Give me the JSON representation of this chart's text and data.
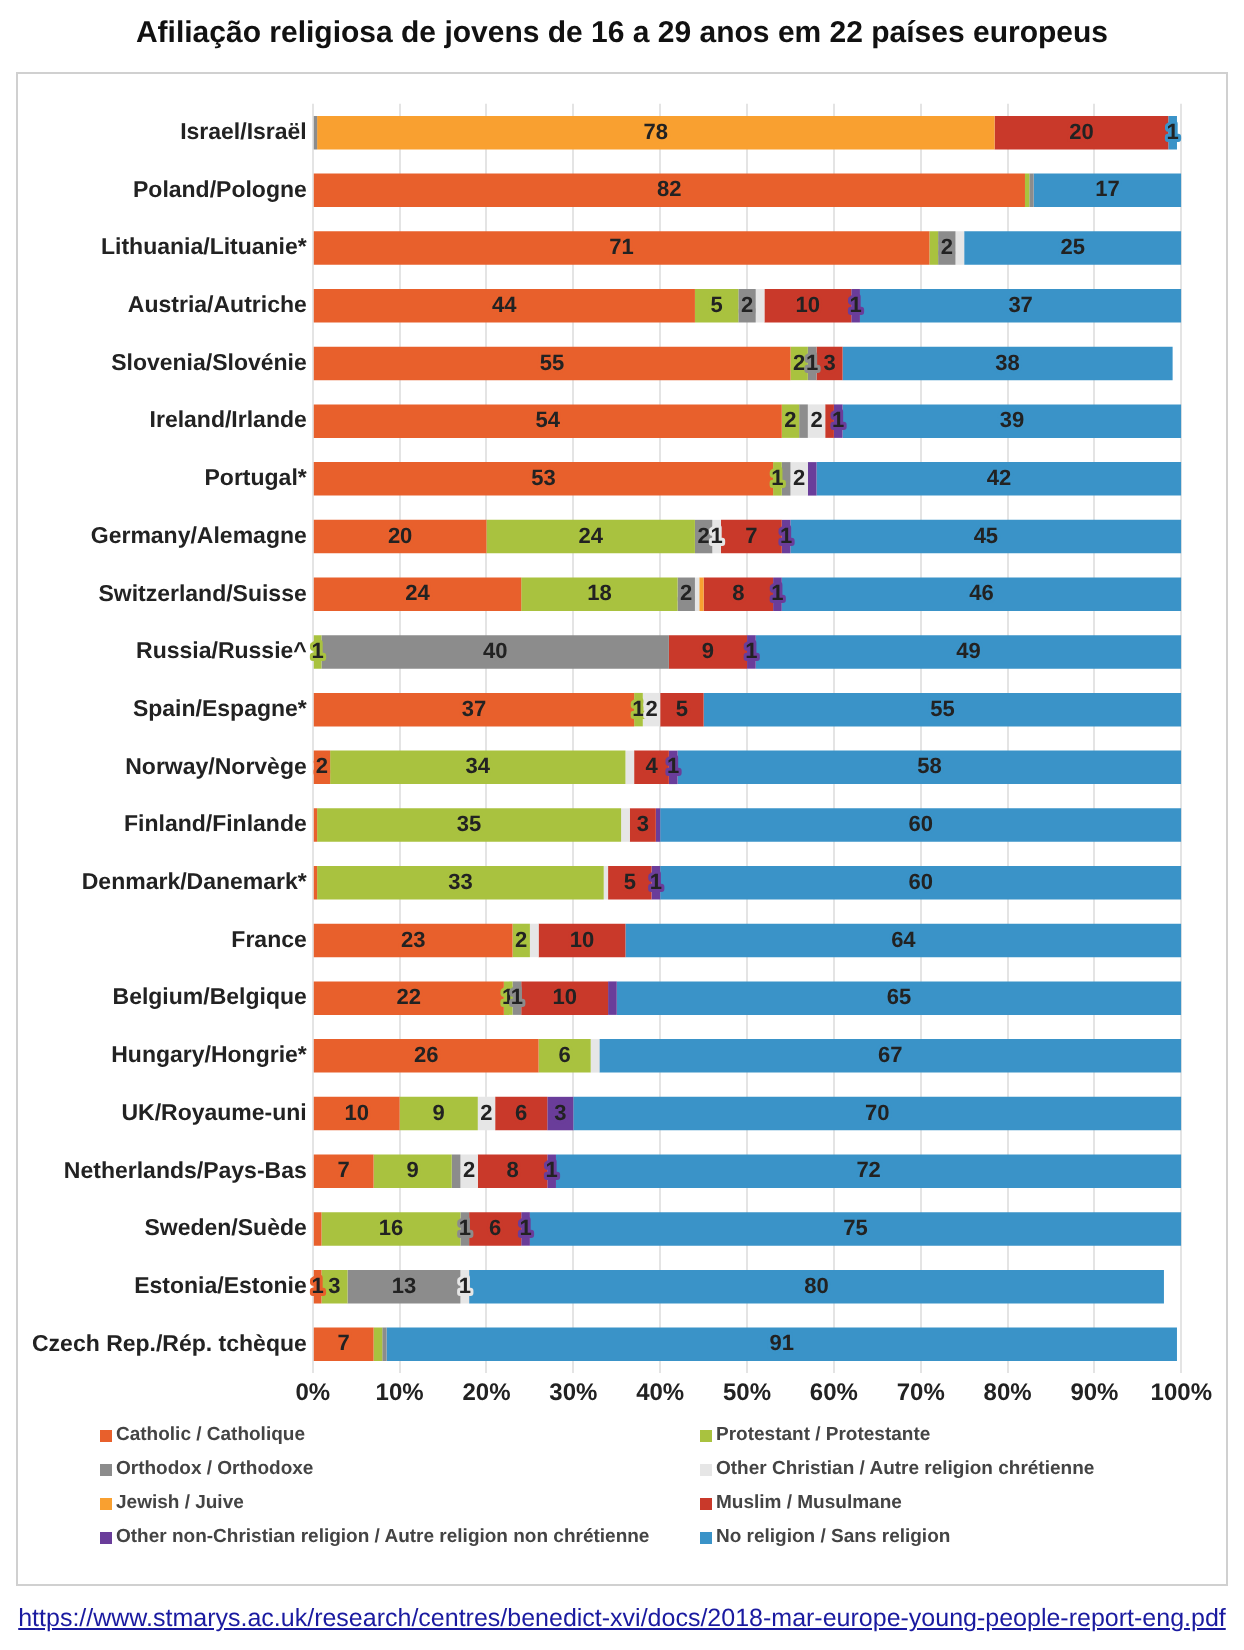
{
  "chart_data": {
    "type": "bar",
    "orientation": "horizontal",
    "stacked": true,
    "title": "Afiliação religiosa de jovens de 16 a 29 anos em 22 países europeus",
    "categories": [
      "Israel/Israël",
      "Poland/Pologne",
      "Lithuania/Lituanie*",
      "Austria/Autriche",
      "Slovenia/Slovénie",
      "Ireland/Irlande",
      "Portugal*",
      "Germany/Alemagne",
      "Switzerland/Suisse",
      "Russia/Russie^",
      "Spain/Espagne*",
      "Norway/Norvège",
      "Finland/Finlande",
      "Denmark/Danemark*",
      "France",
      "Belgium/Belgique",
      "Hungary/Hongrie*",
      "UK/Royaume-uni",
      "Netherlands/Pays-Bas",
      "Sweden/Suède",
      "Estonia/Estonie",
      "Czech Rep./Rép. tchèque"
    ],
    "series": [
      {
        "name": "Catholic / Catholique",
        "color": "#e8602c",
        "values": [
          0,
          82,
          71,
          44,
          55,
          54,
          53,
          20,
          24,
          0,
          37,
          2,
          0.5,
          0.5,
          23,
          22,
          26,
          10,
          7,
          1,
          1,
          7
        ],
        "value_labels": [
          null,
          "82",
          "71",
          "44",
          "55",
          "54",
          "53",
          "20",
          "24",
          null,
          "37",
          "2",
          null,
          null,
          "23",
          "22",
          "26",
          "10",
          "7",
          null,
          "1",
          "7"
        ]
      },
      {
        "name": "Protestant / Protestante",
        "color": "#a9c23f",
        "values": [
          0,
          0.5,
          1,
          5,
          2,
          2,
          1,
          24,
          18,
          1,
          1,
          34,
          35,
          33,
          2,
          1,
          6,
          9,
          9,
          16,
          3,
          1
        ],
        "value_labels": [
          null,
          null,
          null,
          "5",
          "2",
          "2",
          "1",
          "24",
          "18",
          "1",
          "1",
          "34",
          "35",
          "33",
          "2",
          "1",
          "6",
          "9",
          "9",
          "16",
          "3",
          null
        ]
      },
      {
        "name": "Orthodox / Orthodoxe",
        "color": "#8c8c8c",
        "values": [
          0.5,
          0.5,
          2,
          2,
          1,
          1,
          1,
          2,
          2,
          40,
          0,
          0,
          0,
          0,
          0,
          1,
          0,
          0,
          1,
          1,
          13,
          0.5
        ],
        "value_labels": [
          null,
          null,
          "2",
          "2",
          "1",
          null,
          null,
          "2",
          "2",
          "40",
          null,
          null,
          null,
          null,
          null,
          "1",
          null,
          null,
          null,
          "1",
          "13",
          null
        ]
      },
      {
        "name": "Other Christian / Autre religion chrétienne",
        "color": "#e6e6e6",
        "values": [
          0,
          0,
          1,
          1,
          0,
          2,
          2,
          1,
          0.5,
          0,
          2,
          1,
          1,
          0.5,
          1,
          0,
          1,
          2,
          2,
          0,
          1,
          0
        ],
        "value_labels": [
          null,
          null,
          null,
          null,
          null,
          "2",
          "2",
          "1",
          null,
          null,
          "2",
          null,
          null,
          null,
          null,
          null,
          null,
          "2",
          "2",
          null,
          "1",
          null
        ]
      },
      {
        "name": "Jewish / Juive",
        "color": "#f9a030",
        "values": [
          78,
          0,
          0,
          0,
          0,
          0,
          0,
          0,
          0.5,
          0,
          0,
          0,
          0,
          0,
          0,
          0,
          0,
          0,
          0,
          0,
          0,
          0
        ],
        "value_labels": [
          "78",
          null,
          null,
          null,
          null,
          null,
          null,
          null,
          null,
          null,
          null,
          null,
          null,
          null,
          null,
          null,
          null,
          null,
          null,
          null,
          null,
          null
        ]
      },
      {
        "name": "Muslim / Musulmane",
        "color": "#c9392a",
        "values": [
          20,
          0,
          0,
          10,
          3,
          1,
          0,
          7,
          8,
          9,
          5,
          4,
          3,
          5,
          10,
          10,
          0,
          6,
          8,
          6,
          0,
          0
        ],
        "value_labels": [
          "20",
          null,
          null,
          "10",
          "3",
          null,
          null,
          "7",
          "8",
          "9",
          "5",
          "4",
          "3",
          "5",
          "10",
          "10",
          null,
          "6",
          "8",
          "6",
          null,
          null
        ]
      },
      {
        "name": "Other non-Christian religion / Autre religion non chrétienne",
        "color": "#6a3d9a",
        "values": [
          0,
          0,
          0,
          1,
          0,
          1,
          1,
          1,
          1,
          1,
          0,
          1,
          0.5,
          1,
          0,
          1,
          0,
          3,
          1,
          1,
          0,
          0
        ],
        "value_labels": [
          null,
          null,
          null,
          "1",
          null,
          "1",
          null,
          "1",
          "1",
          "1",
          null,
          "1",
          null,
          "1",
          null,
          null,
          null,
          "3",
          "1",
          "1",
          null,
          null
        ]
      },
      {
        "name": "No religion / Sans religion",
        "color": "#3a93c8",
        "values": [
          1,
          17,
          25,
          37,
          38,
          39,
          42,
          45,
          46,
          49,
          55,
          58,
          60,
          60,
          64,
          65,
          67,
          70,
          72,
          75,
          80,
          91
        ],
        "value_labels": [
          "1",
          "17",
          "25",
          "37",
          "38",
          "39",
          "42",
          "45",
          "46",
          "49",
          "55",
          "58",
          "60",
          "60",
          "64",
          "65",
          "67",
          "70",
          "72",
          "75",
          "80",
          "91"
        ]
      }
    ],
    "xlim": [
      0,
      100
    ],
    "xticks": [
      {
        "value": 0,
        "label": "0%"
      },
      {
        "value": 10,
        "label": "10%"
      },
      {
        "value": 20,
        "label": "20%"
      },
      {
        "value": 30,
        "label": "30%"
      },
      {
        "value": 40,
        "label": "40%"
      },
      {
        "value": 50,
        "label": "50%"
      },
      {
        "value": 60,
        "label": "60%"
      },
      {
        "value": 70,
        "label": "70%"
      },
      {
        "value": 80,
        "label": "80%"
      },
      {
        "value": 90,
        "label": "90%"
      },
      {
        "value": 100,
        "label": "100%"
      }
    ],
    "grid": "x",
    "legend": "bottom",
    "annotations": [
      "https://www.stmarys.ac.uk/research/centres/benedict-xvi/docs/2018-mar-europe-young-people-report-eng.pdf"
    ]
  }
}
